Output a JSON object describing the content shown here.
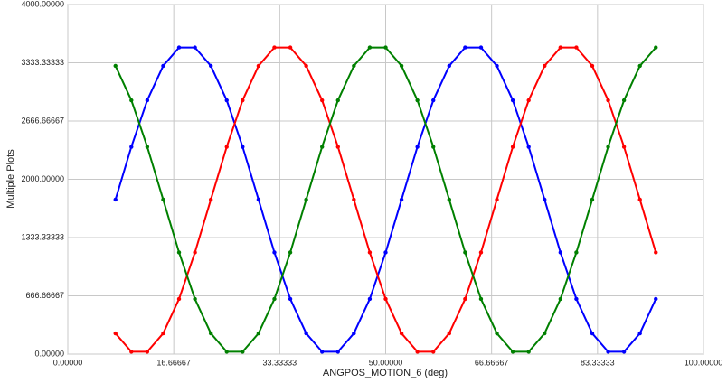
{
  "chart_data": {
    "type": "line",
    "y_label": "Multiple Plots",
    "x_label": "ANGPOS_MOTION_6 (deg)",
    "xlim": [
      0,
      100
    ],
    "xticks": [
      {
        "value": 0,
        "label": "0.00000"
      },
      {
        "value": 16.66667,
        "label": "16.66667"
      },
      {
        "value": 33.33333,
        "label": "33.33333"
      },
      {
        "value": 50,
        "label": "50.00000"
      },
      {
        "value": 66.66667,
        "label": "66.66667"
      },
      {
        "value": 83.33333,
        "label": "83.33333"
      },
      {
        "value": 100,
        "label": "100.00000"
      }
    ],
    "ylim": [
      0,
      4000
    ],
    "yticks": [
      {
        "value": 0,
        "label": "0.00000"
      },
      {
        "value": 666.66667,
        "label": "666.66667"
      },
      {
        "value": 1333.33333,
        "label": "1333.33333"
      },
      {
        "value": 2000,
        "label": "2000.00000"
      },
      {
        "value": 2666.66667,
        "label": "2666.66667"
      },
      {
        "value": 3333.33333,
        "label": "3333.33333"
      },
      {
        "value": 4000,
        "label": "4000.00000"
      }
    ],
    "grid": true,
    "x": [
      7.5,
      10,
      12.5,
      15,
      17.5,
      20,
      22.5,
      25,
      27.5,
      30,
      32.5,
      35,
      37.5,
      40,
      42.5,
      45,
      47.5,
      50,
      52.5,
      55,
      57.5,
      60,
      62.5,
      65,
      67.5,
      70,
      72.5,
      75,
      77.5,
      80,
      82.5,
      85,
      87.5,
      90,
      92.5
    ],
    "series": [
      {
        "color": "#0000ff",
        "values": [
          1768,
          2372,
          2904,
          3298,
          3508,
          3508,
          3298,
          2904,
          2372,
          1768,
          1163,
          631,
          237,
          27,
          27,
          237,
          631,
          1163,
          1768,
          2372,
          2904,
          3298,
          3508,
          3508,
          3298,
          2904,
          2372,
          1768,
          1163,
          631,
          237,
          27,
          27,
          237,
          631
        ]
      },
      {
        "color": "#ff0000",
        "values": [
          237,
          27,
          27,
          237,
          631,
          1163,
          1768,
          2372,
          2904,
          3298,
          3508,
          3508,
          3298,
          2904,
          2372,
          1768,
          1163,
          631,
          237,
          27,
          27,
          237,
          631,
          1163,
          1768,
          2372,
          2904,
          3298,
          3508,
          3508,
          3298,
          2904,
          2372,
          1768,
          1163
        ]
      },
      {
        "color": "#008000",
        "values": [
          3298,
          2904,
          2372,
          1768,
          1163,
          631,
          237,
          27,
          27,
          237,
          631,
          1163,
          1768,
          2372,
          2904,
          3298,
          3508,
          3508,
          3298,
          2904,
          2372,
          1768,
          1163,
          631,
          237,
          27,
          27,
          237,
          631,
          1163,
          1768,
          2372,
          2904,
          3298,
          3508
        ]
      }
    ]
  }
}
